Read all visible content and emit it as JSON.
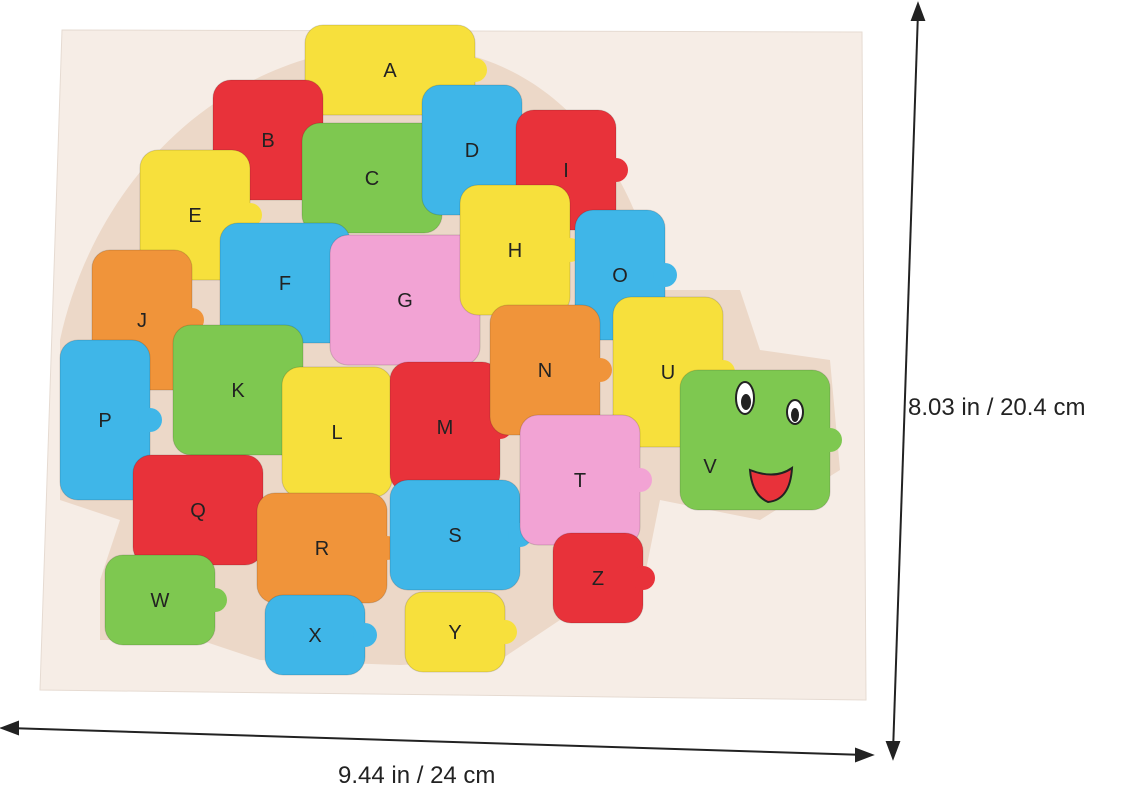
{
  "product": {
    "pieces": [
      {
        "letter": "A",
        "color": "#f7e03c"
      },
      {
        "letter": "B",
        "color": "#e8323a"
      },
      {
        "letter": "C",
        "color": "#7ec850"
      },
      {
        "letter": "D",
        "color": "#3fb6e8"
      },
      {
        "letter": "I",
        "color": "#e8323a"
      },
      {
        "letter": "E",
        "color": "#f7e03c"
      },
      {
        "letter": "F",
        "color": "#3fb6e8"
      },
      {
        "letter": "G",
        "color": "#f2a3d4"
      },
      {
        "letter": "H",
        "color": "#f7e03c"
      },
      {
        "letter": "O",
        "color": "#3fb6e8"
      },
      {
        "letter": "J",
        "color": "#f0943a"
      },
      {
        "letter": "K",
        "color": "#7ec850"
      },
      {
        "letter": "L",
        "color": "#f7e03c"
      },
      {
        "letter": "M",
        "color": "#e8323a"
      },
      {
        "letter": "N",
        "color": "#f0943a"
      },
      {
        "letter": "U",
        "color": "#f7e03c"
      },
      {
        "letter": "P",
        "color": "#3fb6e8"
      },
      {
        "letter": "Q",
        "color": "#e8323a"
      },
      {
        "letter": "R",
        "color": "#f0943a"
      },
      {
        "letter": "S",
        "color": "#3fb6e8"
      },
      {
        "letter": "T",
        "color": "#f2a3d4"
      },
      {
        "letter": "V",
        "color": "#7ec850"
      },
      {
        "letter": "W",
        "color": "#7ec850"
      },
      {
        "letter": "X",
        "color": "#3fb6e8"
      },
      {
        "letter": "Y",
        "color": "#f7e03c"
      },
      {
        "letter": "Z",
        "color": "#e8323a"
      }
    ],
    "board_color": "#f6ede6"
  },
  "dimensions": {
    "height_label": "8.03 in / 20.4 cm",
    "width_label": "9.44 in / 24 cm"
  }
}
